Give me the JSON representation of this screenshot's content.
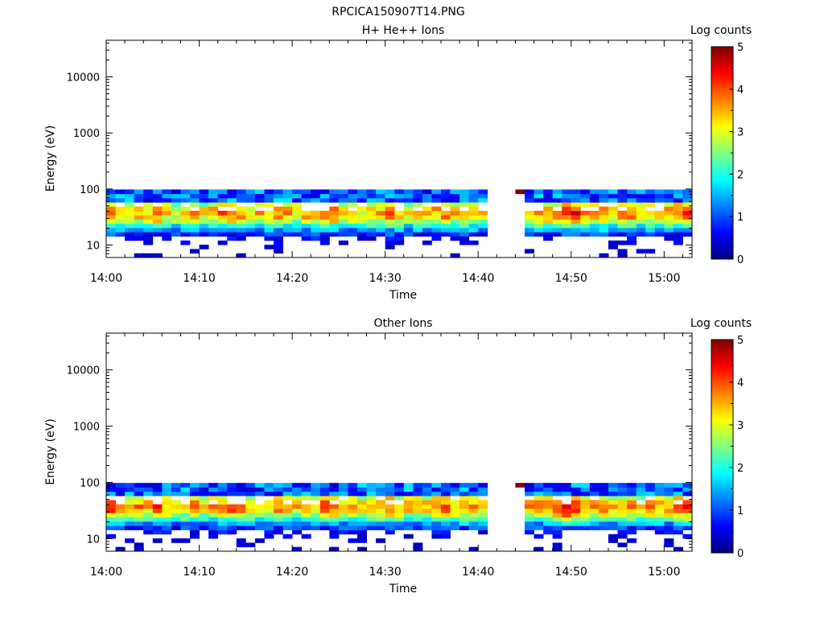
{
  "figure_title": "RPCICA150907T14.PNG",
  "chart_data": [
    {
      "type": "heatmap",
      "title": "H+ He++ Ions",
      "xlabel": "Time",
      "ylabel": "Energy (eV)",
      "x_range": [
        "14:00",
        "15:03"
      ],
      "x_ticks": [
        "14:00",
        "14:10",
        "14:20",
        "14:30",
        "14:40",
        "14:50",
        "15:00"
      ],
      "y_scale": "log",
      "y_range": [
        6,
        45000
      ],
      "y_ticks": [
        10,
        100,
        1000,
        10000
      ],
      "y_tick_labels": [
        "10",
        "100",
        "1000",
        "10000"
      ],
      "colorbar": {
        "label": "Log counts",
        "min": 0,
        "max": 5,
        "ticks": [
          "0",
          "1",
          "2",
          "3",
          "4",
          "5"
        ],
        "colormap": "jet"
      },
      "data_gap": [
        "14:41",
        "14:44"
      ],
      "peak_energy_eV": 38,
      "max_energy_eV": 98,
      "min_energy_eV": 6,
      "x_minutes": [
        0,
        1,
        2,
        3,
        4,
        5,
        6,
        7,
        8,
        9,
        10,
        11,
        12,
        13,
        14,
        15,
        16,
        17,
        18,
        19,
        20,
        21,
        22,
        23,
        24,
        25,
        26,
        27,
        28,
        29,
        30,
        31,
        32,
        33,
        34,
        35,
        36,
        37,
        38,
        39,
        40,
        44,
        45,
        46,
        47,
        48,
        49,
        50,
        51,
        52,
        53,
        54,
        55,
        56,
        57,
        58,
        59,
        60,
        61,
        62
      ],
      "peak_log_counts": [
        3.7,
        3.4,
        3.2,
        3.5,
        3.3,
        3.9,
        3.4,
        3.1,
        3.3,
        3.6,
        3.2,
        3.5,
        3.8,
        3.9,
        3.6,
        3.3,
        3.5,
        3.4,
        3.7,
        3.6,
        3.3,
        3.5,
        3.4,
        3.9,
        4.0,
        3.6,
        3.3,
        3.2,
        3.4,
        3.5,
        3.8,
        3.6,
        3.3,
        3.5,
        3.4,
        3.6,
        3.8,
        3.4,
        3.7,
        3.5,
        3.3,
        5.0,
        3.5,
        3.7,
        3.8,
        3.6,
        4.1,
        4.3,
        3.9,
        3.6,
        3.7,
        3.5,
        3.6,
        3.8,
        3.4,
        3.6,
        3.5,
        3.7,
        3.9,
        4.2
      ]
    },
    {
      "type": "heatmap",
      "title": "Other Ions",
      "xlabel": "Time",
      "ylabel": "Energy (eV)",
      "x_range": [
        "14:00",
        "15:03"
      ],
      "x_ticks": [
        "14:00",
        "14:10",
        "14:20",
        "14:30",
        "14:40",
        "14:50",
        "15:00"
      ],
      "y_scale": "log",
      "y_range": [
        6,
        45000
      ],
      "y_ticks": [
        10,
        100,
        1000,
        10000
      ],
      "y_tick_labels": [
        "10",
        "100",
        "1000",
        "10000"
      ],
      "colorbar": {
        "label": "Log counts",
        "min": 0,
        "max": 5,
        "ticks": [
          "0",
          "1",
          "2",
          "3",
          "4",
          "5"
        ],
        "colormap": "jet"
      },
      "data_gap": [
        "14:41",
        "14:44"
      ],
      "peak_energy_eV": 38,
      "max_energy_eV": 98,
      "min_energy_eV": 6,
      "x_minutes": [
        0,
        1,
        2,
        3,
        4,
        5,
        6,
        7,
        8,
        9,
        10,
        11,
        12,
        13,
        14,
        15,
        16,
        17,
        18,
        19,
        20,
        21,
        22,
        23,
        24,
        25,
        26,
        27,
        28,
        29,
        30,
        31,
        32,
        33,
        34,
        35,
        36,
        37,
        38,
        39,
        40,
        44,
        45,
        46,
        47,
        48,
        49,
        50,
        51,
        52,
        53,
        54,
        55,
        56,
        57,
        58,
        59,
        60,
        61,
        62
      ],
      "peak_log_counts": [
        4.1,
        3.6,
        3.3,
        3.7,
        3.4,
        4.0,
        3.5,
        3.2,
        3.4,
        3.6,
        3.3,
        3.5,
        3.8,
        4.0,
        3.7,
        3.4,
        3.5,
        3.4,
        3.8,
        3.7,
        3.4,
        3.5,
        3.5,
        3.9,
        4.1,
        3.6,
        3.4,
        3.3,
        3.4,
        3.6,
        3.9,
        3.6,
        3.4,
        3.5,
        3.5,
        3.7,
        3.9,
        3.5,
        3.8,
        3.6,
        3.4,
        5.0,
        3.5,
        3.7,
        3.8,
        4.2,
        4.6,
        4.4,
        3.8,
        3.6,
        3.7,
        3.6,
        3.7,
        3.9,
        3.5,
        3.6,
        3.5,
        3.7,
        3.9,
        4.3
      ]
    }
  ]
}
